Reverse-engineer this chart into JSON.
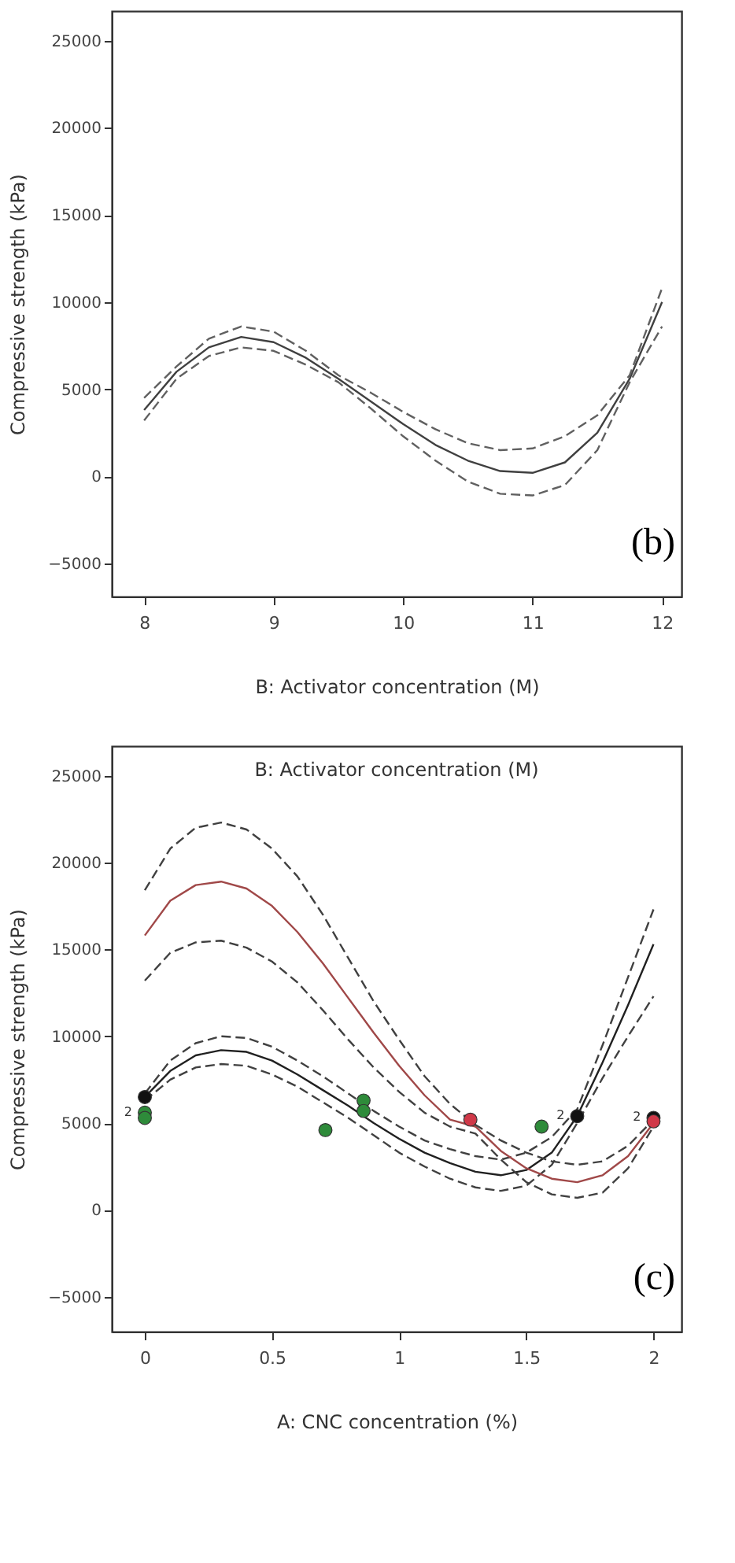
{
  "chart_data": [
    {
      "type": "line",
      "xlabel": "B: Activator concentration (M)",
      "ylabel": "Compressive strength (kPa)",
      "x": [
        8,
        8.25,
        8.5,
        8.75,
        9,
        9.25,
        9.5,
        9.75,
        10,
        10.25,
        10.5,
        10.75,
        11,
        11.25,
        11.5,
        11.75,
        12
      ],
      "xlim": [
        7.75,
        12.15
      ],
      "ylim": [
        -6900,
        26700
      ],
      "xticks": [
        8,
        9,
        10,
        11,
        12
      ],
      "yticks": [
        -5000,
        0,
        5000,
        10000,
        15000,
        20000,
        25000
      ],
      "annotations": [
        "(b)"
      ],
      "series": [
        {
          "color": "#404040",
          "line_style": "solid",
          "values": [
            3800,
            6000,
            7400,
            8000,
            7700,
            6800,
            5600,
            4300,
            3000,
            1800,
            900,
            300,
            200,
            800,
            2500,
            5600,
            10000
          ]
        },
        {
          "color": "#606060",
          "line_style": "dashed",
          "values": [
            4500,
            6300,
            7900,
            8600,
            8300,
            7200,
            5800,
            4800,
            3700,
            2700,
            1900,
            1500,
            1600,
            2300,
            3500,
            5800,
            10800
          ]
        },
        {
          "color": "#606060",
          "line_style": "dashed",
          "values": [
            3200,
            5600,
            6900,
            7400,
            7200,
            6400,
            5400,
            3900,
            2300,
            900,
            -300,
            -1000,
            -1100,
            -500,
            1500,
            5400,
            8600
          ]
        }
      ]
    },
    {
      "type": "line",
      "title": "B: Activator concentration (M)",
      "xlabel": "A: CNC concentration (%)",
      "ylabel": "Compressive strength (kPa)",
      "x": [
        0,
        0.1,
        0.2,
        0.3,
        0.4,
        0.5,
        0.6,
        0.7,
        0.8,
        0.9,
        1,
        1.1,
        1.2,
        1.3,
        1.4,
        1.5,
        1.6,
        1.7,
        1.8,
        1.9,
        2
      ],
      "xlim": [
        -0.13,
        2.11
      ],
      "ylim": [
        -7000,
        26700
      ],
      "xticks": [
        0,
        0.5,
        1,
        1.5,
        2
      ],
      "yticks": [
        -5000,
        0,
        5000,
        10000,
        15000,
        20000,
        25000
      ],
      "annotations": [
        "(c)",
        {
          "text": "2",
          "x": 0,
          "y": 5600
        },
        {
          "text": "2",
          "x": 1.7,
          "y": 5400
        },
        {
          "text": "2",
          "x": 2,
          "y": 5300
        }
      ],
      "series": [
        {
          "color": "#202020",
          "line_style": "solid",
          "values": [
            6500,
            8000,
            8900,
            9200,
            9100,
            8600,
            7800,
            6900,
            6000,
            5000,
            4100,
            3300,
            2700,
            2200,
            2000,
            2300,
            3300,
            5400,
            8500,
            11800,
            15300
          ]
        },
        {
          "color": "#404040",
          "line_style": "dashed",
          "values": [
            6700,
            8600,
            9600,
            10000,
            9900,
            9400,
            8600,
            7700,
            6700,
            5700,
            4800,
            4000,
            3500,
            3100,
            2900,
            3300,
            4200,
            5800,
            9500,
            13400,
            17300
          ]
        },
        {
          "color": "#404040",
          "line_style": "dashed",
          "values": [
            6300,
            7500,
            8200,
            8400,
            8300,
            7800,
            7100,
            6200,
            5300,
            4300,
            3300,
            2500,
            1800,
            1300,
            1100,
            1400,
            2600,
            5000,
            7600,
            10000,
            12300
          ]
        },
        {
          "color": "#a04848",
          "line_style": "solid",
          "values": [
            15800,
            17800,
            18700,
            18900,
            18500,
            17500,
            16000,
            14200,
            12200,
            10200,
            8300,
            6600,
            5200,
            4800,
            3400,
            2400,
            1800,
            1600,
            2000,
            3100,
            5000
          ]
        },
        {
          "color": "#404040",
          "line_style": "dashed",
          "values": [
            18400,
            20800,
            22000,
            22300,
            21900,
            20800,
            19200,
            17000,
            14500,
            12000,
            9800,
            7700,
            6100,
            4900,
            4000,
            3300,
            2800,
            2600,
            2800,
            3700,
            5200
          ]
        },
        {
          "color": "#404040",
          "line_style": "dashed",
          "values": [
            13200,
            14800,
            15400,
            15500,
            15100,
            14300,
            13100,
            11500,
            9800,
            8200,
            6800,
            5600,
            4800,
            4400,
            2900,
            1600,
            900,
            700,
            1000,
            2400,
            4800
          ]
        },
        {
          "type": "scatter",
          "marker": "circle",
          "color": "#111111",
          "x": [
            0,
            1.7,
            2
          ],
          "values": [
            6500,
            5400,
            5300
          ]
        },
        {
          "type": "scatter",
          "marker": "circle",
          "color": "#2e8b3a",
          "x": [
            0,
            0,
            0.71,
            0.86,
            0.86,
            1.56
          ],
          "values": [
            5600,
            5300,
            4600,
            6300,
            5700,
            4800
          ]
        },
        {
          "type": "scatter",
          "marker": "circle",
          "color": "#d03848",
          "x": [
            1.28,
            2
          ],
          "values": [
            5200,
            5100
          ]
        }
      ]
    }
  ]
}
